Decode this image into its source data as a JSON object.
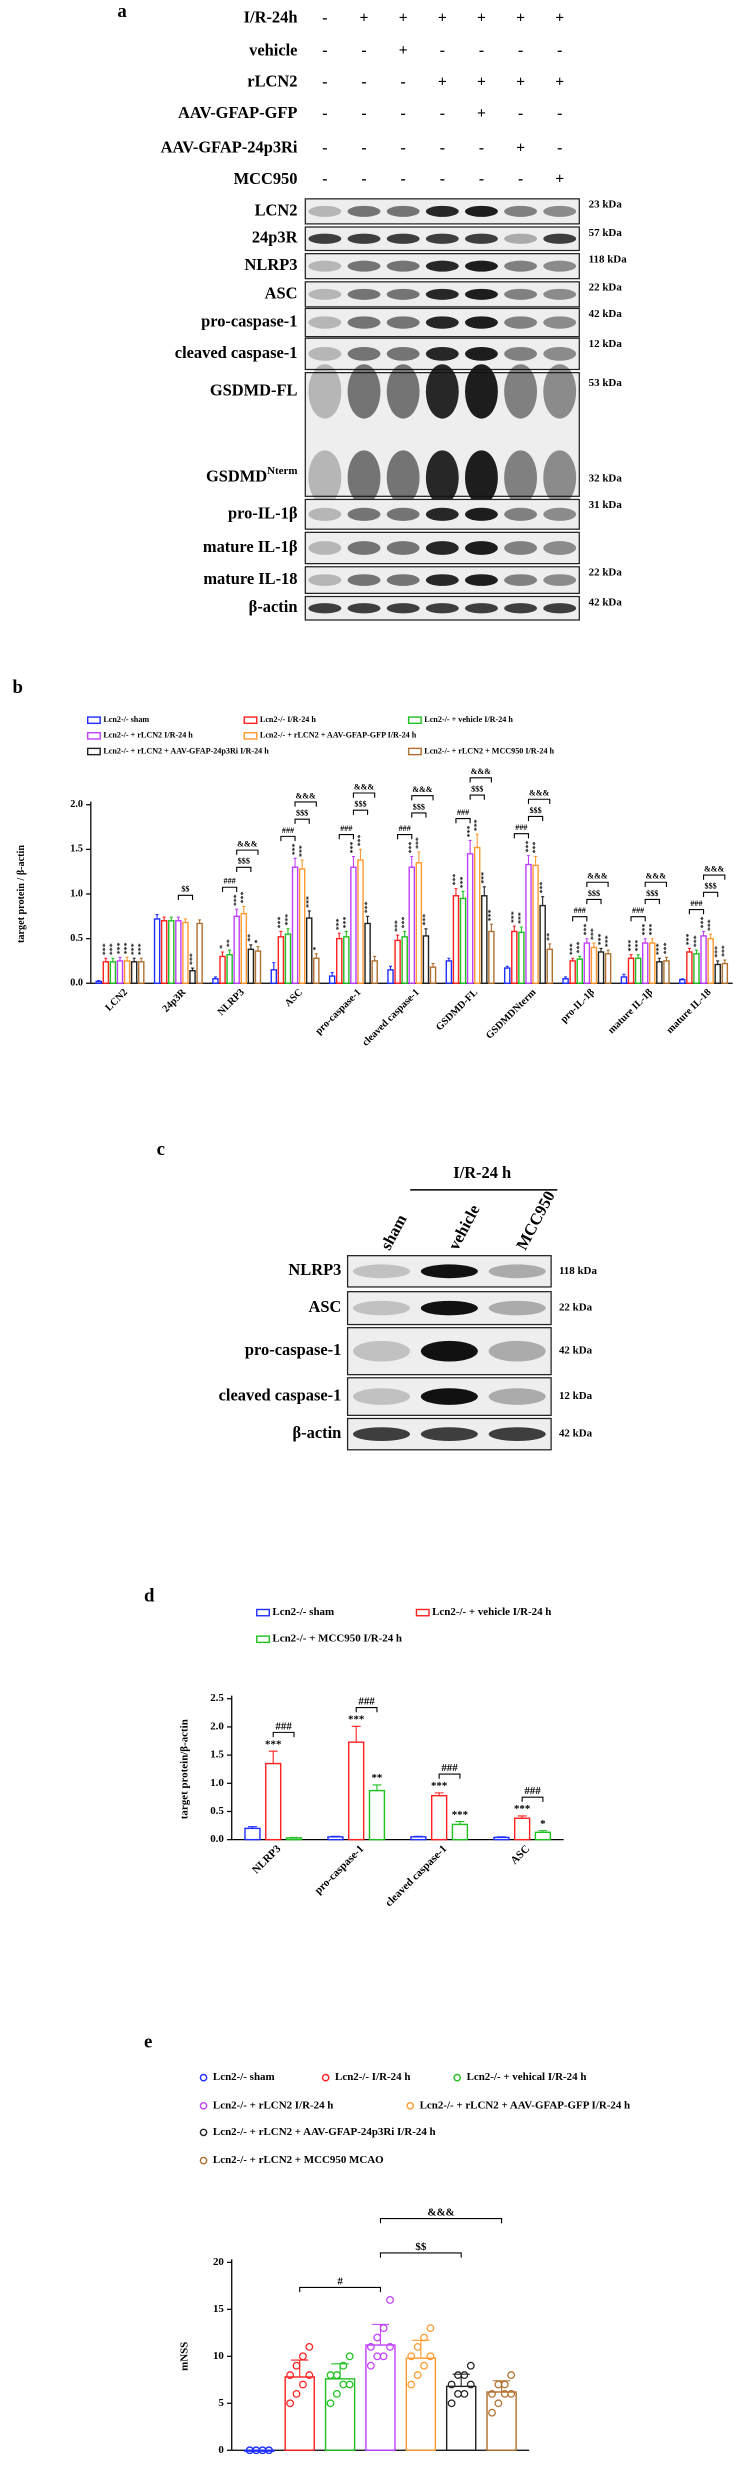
{
  "panel_a": {
    "label": "a",
    "conditions": [
      {
        "name": "I/R-24h",
        "signs": [
          "-",
          "+",
          "+",
          "+",
          "+",
          "+",
          "+"
        ]
      },
      {
        "name": "vehicle",
        "signs": [
          "-",
          "-",
          "+",
          "-",
          "-",
          "-",
          "-"
        ]
      },
      {
        "name": "rLCN2",
        "signs": [
          "-",
          "-",
          "-",
          "+",
          "+",
          "+",
          "+"
        ]
      },
      {
        "name": "AAV-GFAP-GFP",
        "signs": [
          "-",
          "-",
          "-",
          "-",
          "+",
          "-",
          "-"
        ]
      },
      {
        "name": "AAV-GFAP-24p3Ri",
        "signs": [
          "-",
          "-",
          "-",
          "-",
          "-",
          "+",
          "-"
        ]
      },
      {
        "name": "MCC950",
        "signs": [
          "-",
          "-",
          "-",
          "-",
          "-",
          "-",
          "+"
        ]
      }
    ],
    "blots": [
      {
        "name": "LCN2",
        "kda": "23 kDa"
      },
      {
        "name": "24p3R",
        "kda": "57 kDa"
      },
      {
        "name": "NLRP3",
        "kda": "118 kDa"
      },
      {
        "name": "ASC",
        "kda": "22 kDa"
      },
      {
        "name": "pro-caspase-1",
        "kda": "42 kDa"
      },
      {
        "name": "cleaved caspase-1",
        "kda": "12 kDa"
      },
      {
        "name": "GSDMD-FL",
        "kda": "53 kDa"
      },
      {
        "name": "GSDMD",
        "sup": "Nterm",
        "kda": "32 kDa"
      },
      {
        "name": "pro-IL-1β",
        "kda": "31 kDa"
      },
      {
        "name": "mature IL-1β"
      },
      {
        "name": "mature IL-18",
        "kda": "22 kDa"
      },
      {
        "name": "β-actin",
        "kda": "42 kDa"
      }
    ]
  },
  "panel_c": {
    "label": "c",
    "group": "I/R-24 h",
    "lanes": [
      "sham",
      "vehicle",
      "MCC950"
    ],
    "blots": [
      {
        "name": "NLRP3",
        "kda": "118 kDa"
      },
      {
        "name": "ASC",
        "kda": "22 kDa"
      },
      {
        "name": "pro-caspase-1",
        "kda": "42 kDa"
      },
      {
        "name": "cleaved caspase-1",
        "kda": "12 kDa"
      },
      {
        "name": "β-actin",
        "kda": "42 kDa"
      }
    ]
  },
  "chart_data": [
    {
      "label": "b",
      "type": "bar",
      "y_label": "target protein / β-actin",
      "categories": [
        "LCN2",
        "24p3R",
        "NLRP3",
        "ASC",
        "pro-caspase-1",
        "cleaved caspase-1",
        "GSDMD-FL",
        "GSDMDNterm",
        "pro-IL-1β",
        "mature IL-1β",
        "mature IL-18"
      ],
      "ylim": [
        0,
        2.0
      ],
      "yticks": [
        {
          "value": 0,
          "label": "0.0"
        },
        0.5,
        {
          "value": 1,
          "label": "1.0"
        },
        1.5,
        {
          "value": 2,
          "label": "2.0"
        }
      ],
      "series": [
        {
          "name": "Lcn2-/- sham",
          "color": "#2030ff",
          "values": [
            0.02,
            0.72,
            0.05,
            0.15,
            0.08,
            0.15,
            0.25,
            0.17,
            0.05,
            0.07,
            0.04
          ],
          "errors": [
            0.01,
            0.05,
            0.02,
            0.08,
            0.04,
            0.04,
            0.03,
            0.02,
            0.02,
            0.03,
            0.01
          ],
          "stars": [
            null,
            null,
            null,
            null,
            null,
            null,
            null,
            null,
            null,
            null,
            null
          ]
        },
        {
          "name": "Lcn2-/- I/R-24 h",
          "color": "#ff2020",
          "values": [
            0.24,
            0.7,
            0.3,
            0.52,
            0.5,
            0.48,
            0.98,
            0.58,
            0.25,
            0.28,
            0.35
          ],
          "errors": [
            0.04,
            0.04,
            0.05,
            0.06,
            0.06,
            0.06,
            0.08,
            0.06,
            0.03,
            0.04,
            0.04
          ],
          "stars": [
            "***",
            null,
            "*",
            "***",
            "***",
            "***",
            "***",
            "***",
            "***",
            "***",
            "***"
          ]
        },
        {
          "name": "Lcn2-/- + vehicle I/R-24 h",
          "color": "#20c020",
          "values": [
            0.24,
            0.7,
            0.32,
            0.55,
            0.52,
            0.52,
            0.95,
            0.57,
            0.27,
            0.28,
            0.33
          ],
          "errors": [
            0.04,
            0.04,
            0.05,
            0.06,
            0.06,
            0.06,
            0.08,
            0.06,
            0.03,
            0.04,
            0.04
          ],
          "stars": [
            "***",
            null,
            "**",
            "***",
            "***",
            "***",
            "***",
            "***",
            "***",
            "***",
            "***"
          ]
        },
        {
          "name": "Lcn2-/- + rLCN2 I/R-24 h",
          "color": "#c040ff",
          "values": [
            0.25,
            0.7,
            0.75,
            1.3,
            1.3,
            1.3,
            1.45,
            1.33,
            0.45,
            0.45,
            0.53
          ],
          "errors": [
            0.04,
            0.04,
            0.08,
            0.1,
            0.12,
            0.12,
            0.15,
            0.1,
            0.05,
            0.05,
            0.05
          ],
          "stars": [
            "***",
            null,
            "***",
            "***",
            "***",
            "***",
            "***",
            "***",
            "***",
            "***",
            "***"
          ]
        },
        {
          "name": "Lcn2-/- + rLCN2 + AAV-GFAP-GFP I/R-24 h",
          "color": "#ff9a30",
          "values": [
            0.25,
            0.68,
            0.78,
            1.28,
            1.38,
            1.35,
            1.52,
            1.32,
            0.4,
            0.45,
            0.5
          ],
          "errors": [
            0.04,
            0.04,
            0.08,
            0.1,
            0.12,
            0.12,
            0.15,
            0.1,
            0.05,
            0.05,
            0.05
          ],
          "stars": [
            "***",
            null,
            "***",
            "***",
            "***",
            "***",
            "***",
            "***",
            "***",
            "***",
            "***"
          ]
        },
        {
          "name": "Lcn2-/- + rLCN2 + AAV-GFAP-24p3Ri I/R-24 h",
          "color": "#222222",
          "values": [
            0.24,
            0.14,
            0.38,
            0.73,
            0.67,
            0.53,
            0.98,
            0.87,
            0.35,
            0.24,
            0.21
          ],
          "errors": [
            0.04,
            0.03,
            0.05,
            0.08,
            0.08,
            0.08,
            0.1,
            0.1,
            0.04,
            0.04,
            0.04
          ],
          "stars": [
            "***",
            "***",
            "**",
            "***",
            "***",
            "***",
            "***",
            "***",
            "***",
            "***",
            "***"
          ]
        },
        {
          "name": "Lcn2-/- + rLCN2 + MCC950 I/R-24 h",
          "color": "#b07030",
          "values": [
            0.24,
            0.67,
            0.36,
            0.28,
            0.25,
            0.18,
            0.58,
            0.38,
            0.33,
            0.25,
            0.22
          ],
          "errors": [
            0.04,
            0.04,
            0.05,
            0.05,
            0.05,
            0.04,
            0.08,
            0.06,
            0.04,
            0.04,
            0.04
          ],
          "stars": [
            "***",
            null,
            "*",
            "*",
            null,
            null,
            "***",
            "**",
            "***",
            "***",
            "***"
          ]
        }
      ],
      "brackets": [
        {
          "category": 1,
          "from": 3,
          "to": 5,
          "label": "$$"
        },
        {
          "category": 2,
          "from": 1,
          "to": 3,
          "label": "###"
        },
        {
          "category": 2,
          "from": 3,
          "to": 5,
          "label": "$$$"
        },
        {
          "category": 2,
          "from": 3,
          "to": 6,
          "label": "&&&"
        },
        {
          "category": 3,
          "from": 1,
          "to": 3,
          "label": "###"
        },
        {
          "category": 3,
          "from": 3,
          "to": 5,
          "label": "$$$"
        },
        {
          "category": 3,
          "from": 3,
          "to": 6,
          "label": "&&&"
        },
        {
          "category": 4,
          "from": 1,
          "to": 3,
          "label": "###"
        },
        {
          "category": 4,
          "from": 3,
          "to": 5,
          "label": "$$$"
        },
        {
          "category": 4,
          "from": 3,
          "to": 6,
          "label": "&&&"
        },
        {
          "category": 5,
          "from": 1,
          "to": 3,
          "label": "###"
        },
        {
          "category": 5,
          "from": 3,
          "to": 5,
          "label": "$$$"
        },
        {
          "category": 5,
          "from": 3,
          "to": 6,
          "label": "&&&"
        },
        {
          "category": 6,
          "from": 1,
          "to": 3,
          "label": "###"
        },
        {
          "category": 6,
          "from": 3,
          "to": 5,
          "label": "$$$"
        },
        {
          "category": 6,
          "from": 3,
          "to": 6,
          "label": "&&&"
        },
        {
          "category": 7,
          "from": 1,
          "to": 3,
          "label": "###"
        },
        {
          "category": 7,
          "from": 3,
          "to": 5,
          "label": "$$$"
        },
        {
          "category": 7,
          "from": 3,
          "to": 6,
          "label": "&&&"
        },
        {
          "category": 8,
          "from": 1,
          "to": 3,
          "label": "###"
        },
        {
          "category": 8,
          "from": 3,
          "to": 5,
          "label": "$$$"
        },
        {
          "category": 8,
          "from": 3,
          "to": 6,
          "label": "&&&"
        },
        {
          "category": 9,
          "from": 1,
          "to": 3,
          "label": "###"
        },
        {
          "category": 9,
          "from": 3,
          "to": 5,
          "label": "$$$"
        },
        {
          "category": 9,
          "from": 3,
          "to": 6,
          "label": "&&&"
        },
        {
          "category": 10,
          "from": 1,
          "to": 3,
          "label": "###"
        },
        {
          "category": 10,
          "from": 3,
          "to": 5,
          "label": "$$$"
        },
        {
          "category": 10,
          "from": 3,
          "to": 6,
          "label": "&&&"
        }
      ]
    },
    {
      "label": "d",
      "type": "bar",
      "y_label": "target protein/β-actin",
      "categories": [
        "NLRP3",
        "pro-caspase-1",
        "cleaved caspase-1",
        "ASC"
      ],
      "ylim": [
        0,
        2.5
      ],
      "yticks": [
        {
          "value": 0,
          "label": "0.0"
        },
        0.5,
        {
          "value": 1,
          "label": "1.0"
        },
        1.5,
        {
          "value": 2,
          "label": "2.0"
        },
        2.5
      ],
      "series": [
        {
          "name": "Lcn2-/- sham",
          "color": "#2030ff",
          "values": [
            0.2,
            0.05,
            0.05,
            0.04
          ],
          "errors": [
            0.03,
            0.01,
            0.01,
            0.01
          ],
          "stars": [
            null,
            null,
            null,
            null
          ]
        },
        {
          "name": "Lcn2-/- + vehicle I/R-24 h",
          "color": "#ff2020",
          "values": [
            1.35,
            1.73,
            0.78,
            0.38
          ],
          "errors": [
            0.22,
            0.28,
            0.05,
            0.04
          ],
          "stars": [
            "***",
            "***",
            "***",
            "***"
          ]
        },
        {
          "name": "Lcn2-/- + MCC950 I/R-24 h",
          "color": "#20c020",
          "values": [
            0.03,
            0.87,
            0.27,
            0.13
          ],
          "errors": [
            0.01,
            0.1,
            0.05,
            0.03
          ],
          "stars": [
            null,
            "**",
            "***",
            "*"
          ]
        }
      ],
      "brackets": [
        {
          "category": 0,
          "from": 1,
          "to": 2,
          "label": "###"
        },
        {
          "category": 1,
          "from": 1,
          "to": 2,
          "label": "###"
        },
        {
          "category": 2,
          "from": 1,
          "to": 2,
          "label": "###"
        },
        {
          "category": 3,
          "from": 1,
          "to": 2,
          "label": "###"
        }
      ]
    },
    {
      "label": "e",
      "type": "bar",
      "y_label": "mNSS",
      "categories": [
        null
      ],
      "ylim": [
        0,
        20
      ],
      "yticks": [
        0,
        5,
        10,
        15,
        20
      ],
      "series": [
        {
          "name": "Lcn2-/- sham",
          "color": "#2030ff",
          "values": [
            0
          ],
          "errors": [
            0
          ],
          "points": [
            [
              0,
              0,
              0,
              0,
              0,
              0,
              0,
              0
            ]
          ]
        },
        {
          "name": "Lcn2-/- I/R-24 h",
          "color": "#ff2020",
          "values": [
            7.8
          ],
          "errors": [
            1.8
          ],
          "points": [
            [
              5,
              6,
              7,
              8,
              8,
              9,
              10,
              11
            ]
          ]
        },
        {
          "name": "Lcn2-/- + vehical I/R-24 h",
          "color": "#20c020",
          "values": [
            7.6
          ],
          "errors": [
            1.6
          ],
          "points": [
            [
              5,
              6,
              7,
              7,
              8,
              8,
              9,
              10
            ]
          ]
        },
        {
          "name": "Lcn2-/- + rLCN2 I/R-24 h",
          "color": "#c040ff",
          "values": [
            11.2
          ],
          "errors": [
            2.2
          ],
          "points": [
            [
              9,
              10,
              10,
              11,
              11,
              12,
              13,
              16
            ]
          ]
        },
        {
          "name": "Lcn2-/- + rLCN2 + AAV-GFAP-GFP I/R-24 h",
          "color": "#ff9a30",
          "values": [
            9.8
          ],
          "errors": [
            1.9
          ],
          "points": [
            [
              7,
              8,
              9,
              10,
              10,
              11,
              12,
              13
            ]
          ]
        },
        {
          "name": "Lcn2-/- + rLCN2 + AAV-GFAP-24p3Ri I/R-24 h",
          "color": "#222222",
          "values": [
            6.8
          ],
          "errors": [
            1.3
          ],
          "points": [
            [
              5,
              6,
              6,
              7,
              7,
              8,
              8,
              9
            ]
          ]
        },
        {
          "name": "Lcn2-/- + rLCN2 + MCC950 MCAO",
          "color": "#b07030",
          "values": [
            6.2
          ],
          "errors": [
            1.2
          ],
          "points": [
            [
              4,
              5,
              6,
              6,
              6,
              7,
              7,
              8
            ]
          ]
        }
      ],
      "brackets": [
        {
          "category": 0,
          "from": 1,
          "to": 3,
          "label": "#"
        },
        {
          "category": 0,
          "from": 3,
          "to": 5,
          "label": "$$"
        },
        {
          "category": 0,
          "from": 3,
          "to": 6,
          "label": "&&&"
        }
      ]
    }
  ]
}
